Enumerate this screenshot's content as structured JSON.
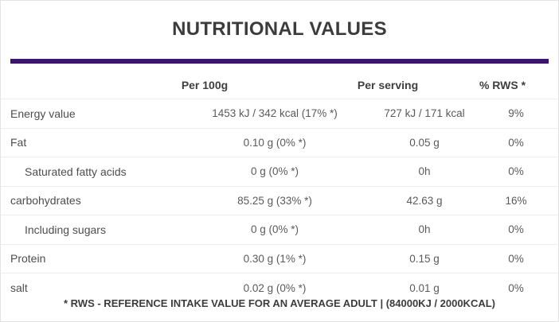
{
  "title": "NUTRITIONAL VALUES",
  "colors": {
    "accent_bar": "#3d1277",
    "background": "#ffffff"
  },
  "table": {
    "column_headers": [
      "Per 100g",
      "Per serving",
      "% RWS *"
    ],
    "rows": [
      {
        "label": "Energy value",
        "indent": false,
        "per_100g": "1453 kJ / 342 kcal (17% *)",
        "per_serving": "727 kJ / 171 kcal",
        "rws": "9%"
      },
      {
        "label": "Fat",
        "indent": false,
        "per_100g": "0.10 g (0% *)",
        "per_serving": "0.05 g",
        "rws": "0%"
      },
      {
        "label": "Saturated fatty acids",
        "indent": true,
        "per_100g": "0 g (0% *)",
        "per_serving": "0h",
        "rws": "0%"
      },
      {
        "label": "carbohydrates",
        "indent": false,
        "per_100g": "85.25 g (33% *)",
        "per_serving": "42.63 g",
        "rws": "16%"
      },
      {
        "label": "Including sugars",
        "indent": true,
        "per_100g": "0 g (0% *)",
        "per_serving": "0h",
        "rws": "0%"
      },
      {
        "label": "Protein",
        "indent": false,
        "per_100g": "0.30 g (1% *)",
        "per_serving": "0.15 g",
        "rws": "0%"
      },
      {
        "label": "salt",
        "indent": false,
        "per_100g": "0.02 g (0% *)",
        "per_serving": "0.01 g",
        "rws": "0%"
      }
    ],
    "footnote": "* RWS - REFERENCE INTAKE VALUE FOR AN AVERAGE ADULT | (84000KJ / 2000KCAL)"
  }
}
